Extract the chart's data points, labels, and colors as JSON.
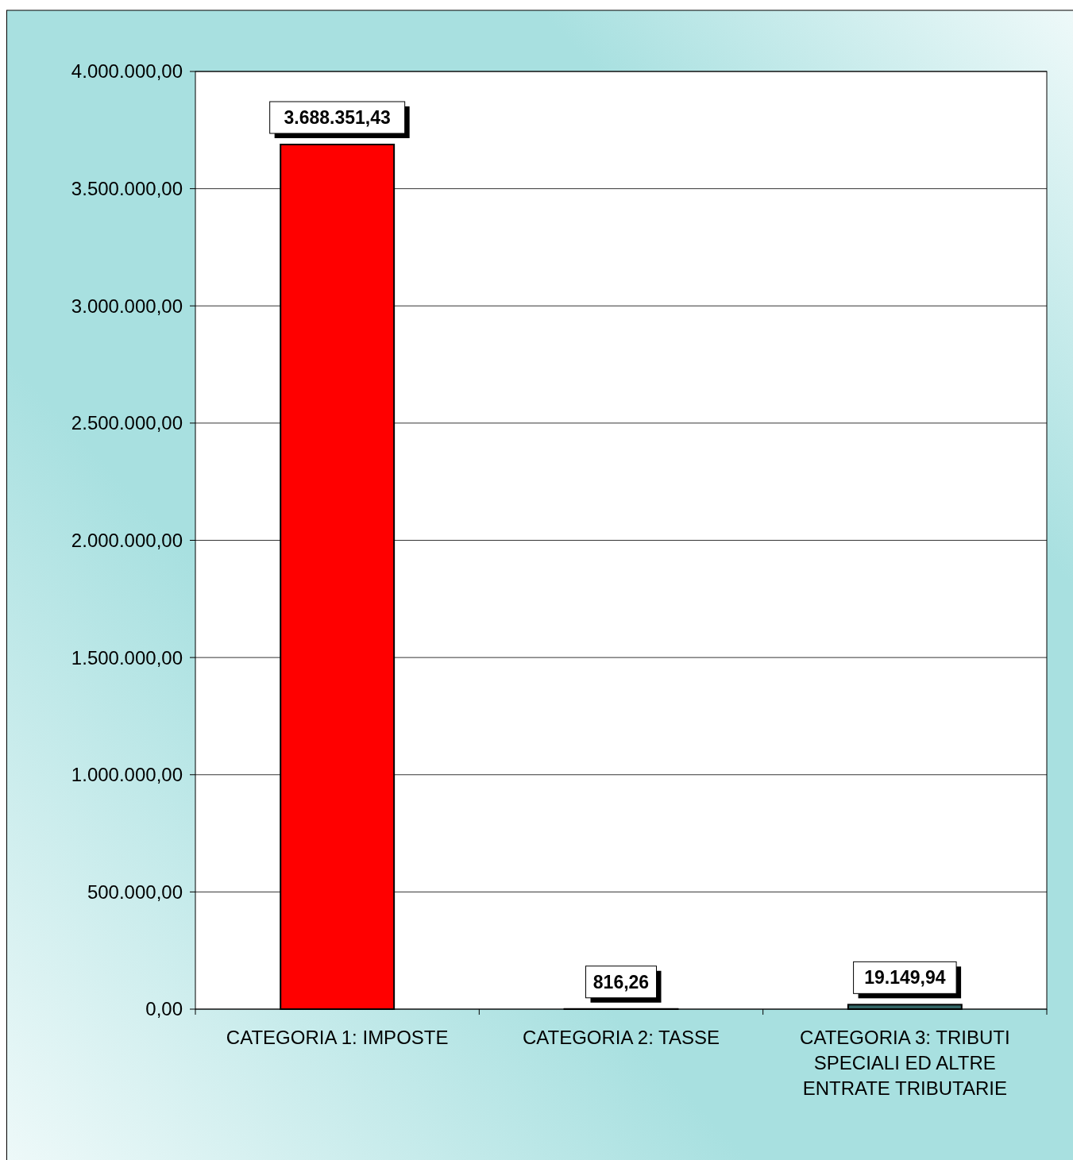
{
  "chart_data": {
    "type": "bar",
    "categories": [
      "CATEGORIA 1: IMPOSTE",
      "CATEGORIA 2: TASSE",
      "CATEGORIA 3: TRIBUTI SPECIALI ED ALTRE ENTRATE TRIBUTARIE"
    ],
    "values": [
      3688351.43,
      816.26,
      19149.94
    ],
    "colors": [
      "#ff0000",
      "#ffff99",
      "#336666"
    ],
    "value_labels": [
      "3.688.351,43",
      "816,26",
      "19.149,94"
    ],
    "ylim": [
      0,
      4000000
    ],
    "yticks": [
      {
        "value": 0,
        "label": "0,00"
      },
      {
        "value": 500000,
        "label": "500.000,00"
      },
      {
        "value": 1000000,
        "label": "1.000.000,00"
      },
      {
        "value": 1500000,
        "label": "1.500.000,00"
      },
      {
        "value": 2000000,
        "label": "2.000.000,00"
      },
      {
        "value": 2500000,
        "label": "2.500.000,00"
      },
      {
        "value": 3000000,
        "label": "3.000.000,00"
      },
      {
        "value": 3500000,
        "label": "3.500.000,00"
      },
      {
        "value": 4000000,
        "label": "4.000.000,00"
      }
    ],
    "grid": "y"
  }
}
